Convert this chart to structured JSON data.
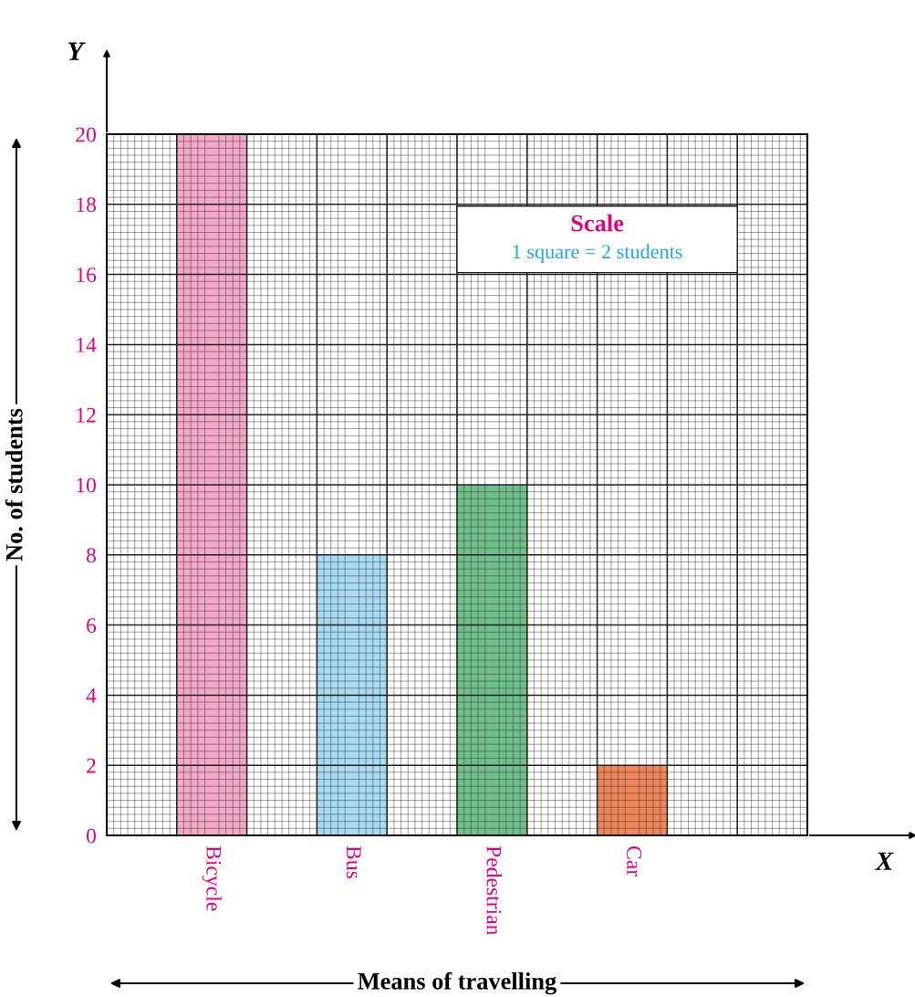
{
  "chart_data": {
    "type": "bar",
    "xlabel": "Means of travelling",
    "ylabel": "No. of students",
    "categories": [
      "Bicycle",
      "Bus",
      "Pedestrian",
      "Car"
    ],
    "values": [
      20,
      8,
      10,
      2
    ],
    "colors": [
      "#f4a7c7",
      "#a8dcf3",
      "#6fc08b",
      "#f0855b"
    ],
    "ylim": [
      0,
      20
    ],
    "yticks": [
      0,
      2,
      4,
      6,
      8,
      10,
      12,
      14,
      16,
      18,
      20
    ],
    "grid": true,
    "annotations": [
      "Scale",
      "1 square = 2 students",
      "Y",
      "X"
    ]
  }
}
